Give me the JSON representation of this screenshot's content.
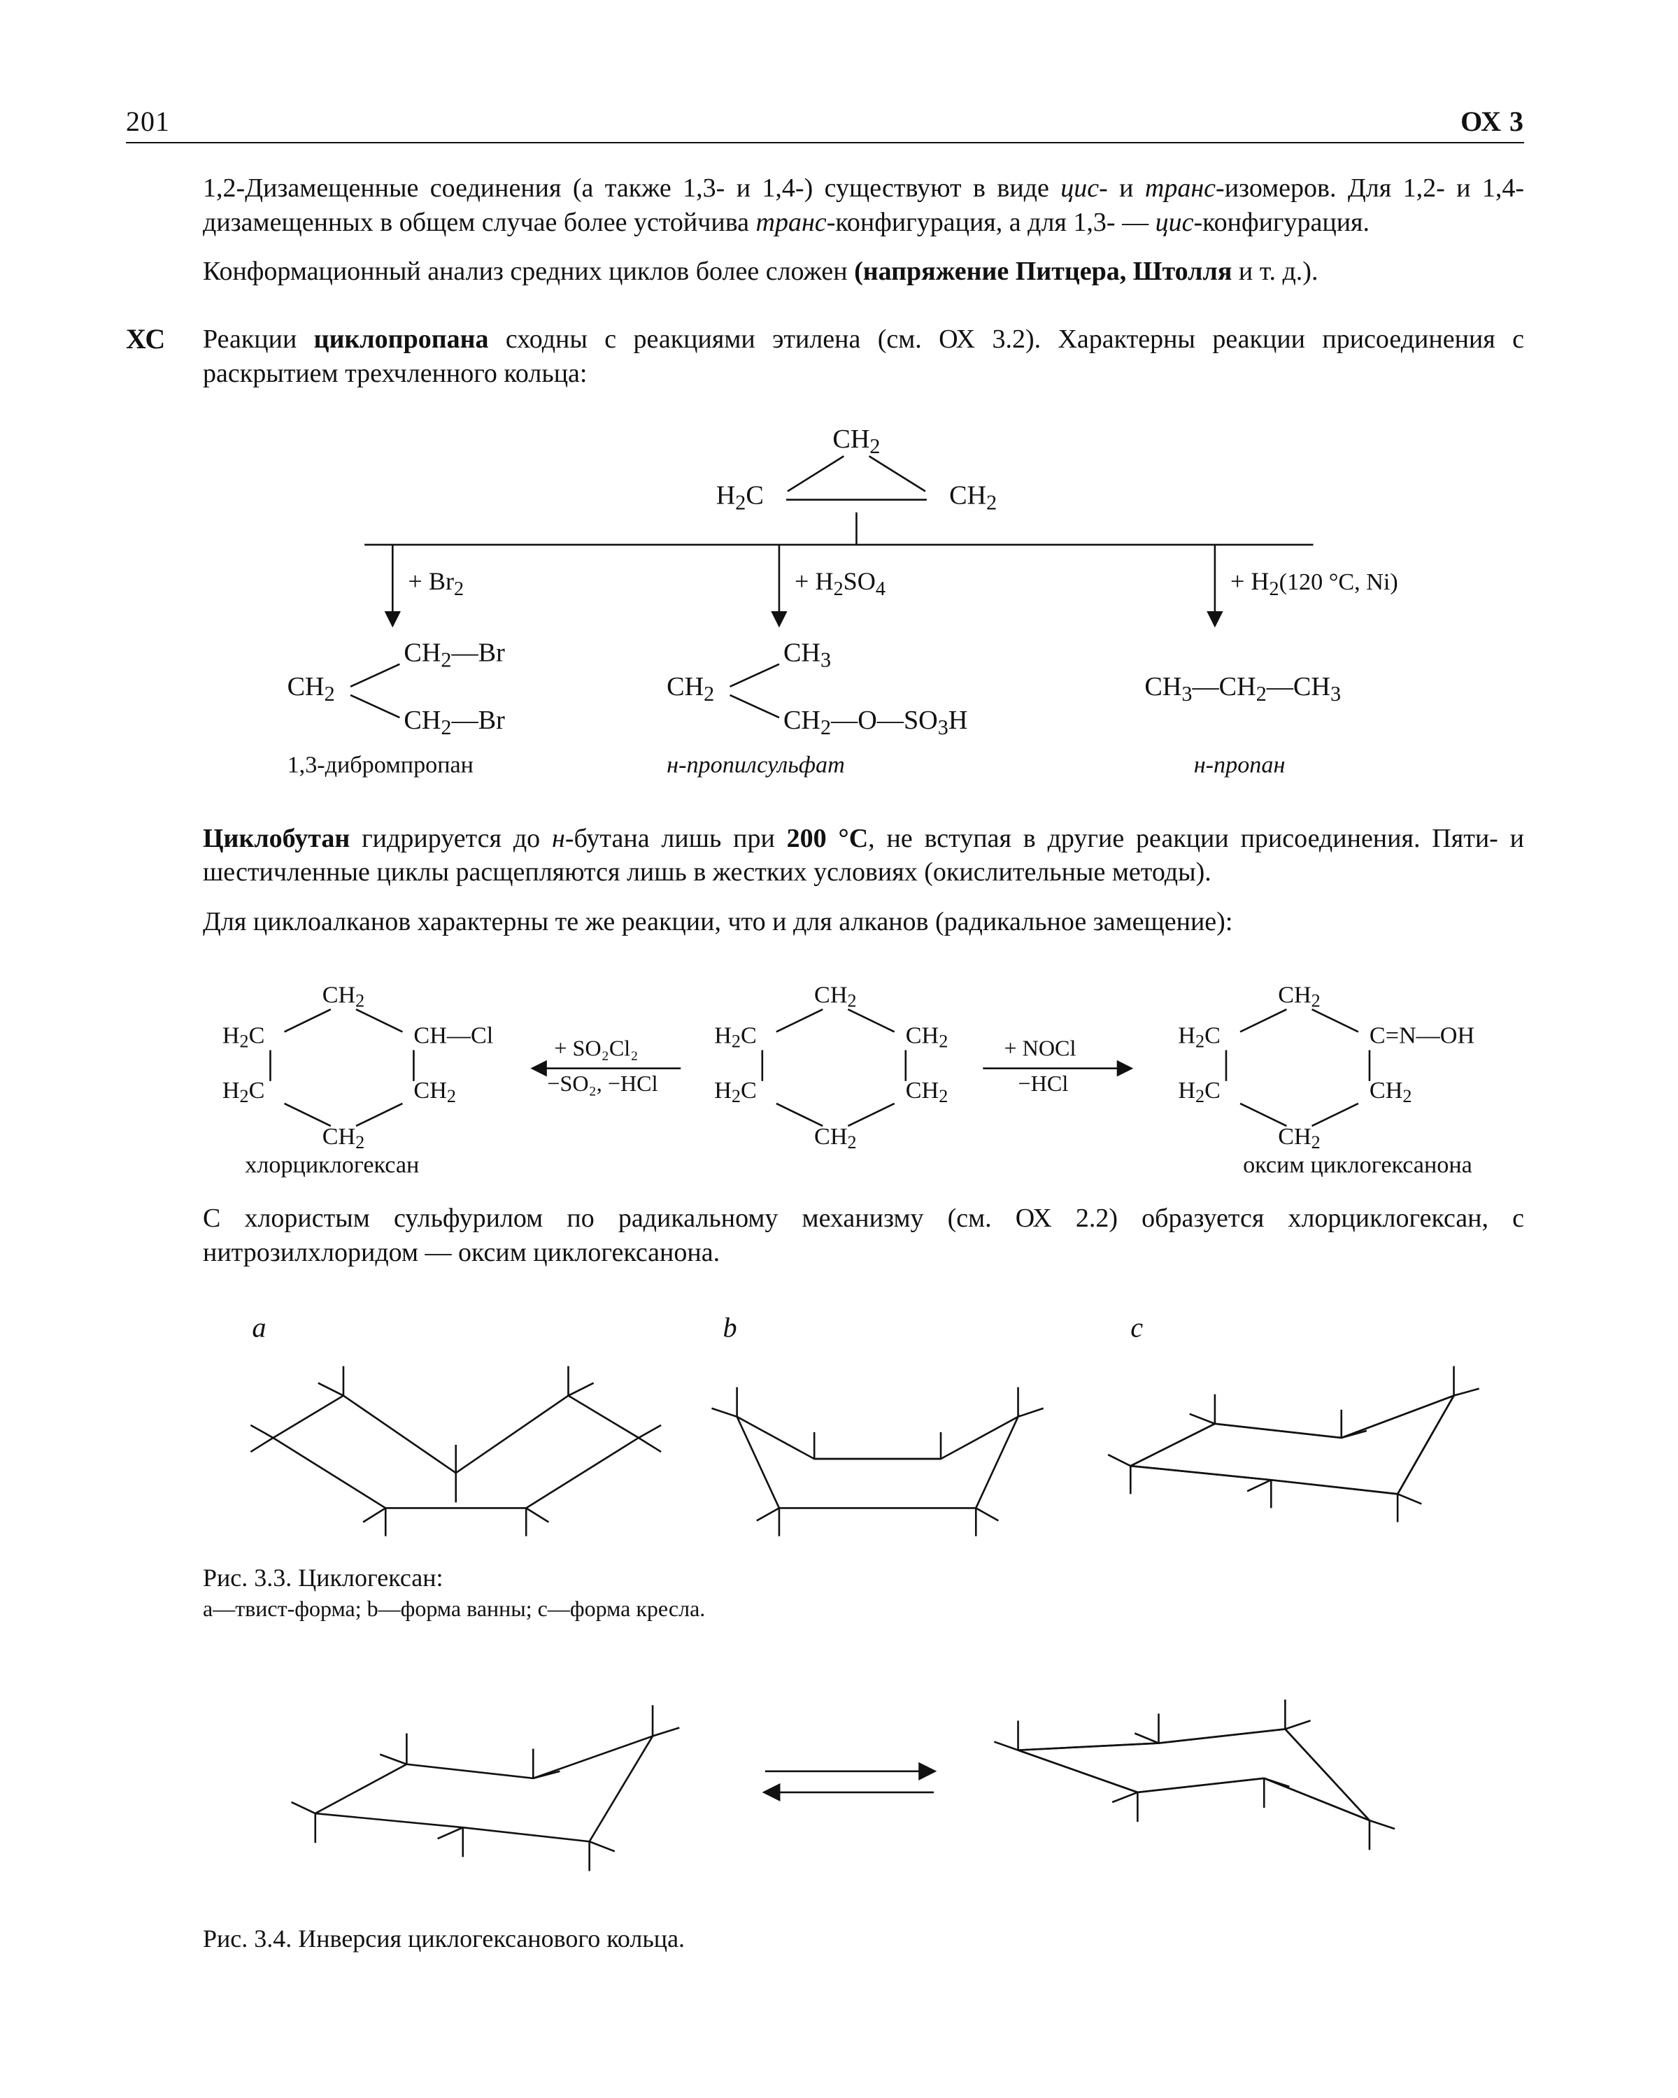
{
  "page_number": "201",
  "section_code": "ОХ 3",
  "margin_label": "ХС",
  "para1_html": "1,2-Дизамещенные соединения (а также 1,3- и 1,4-) существуют в виде <span class=\"i\">цис</span>- и <span class=\"i\">транс</span>-изомеров. Для 1,2- и 1,4-дизамещенных в общем случае более устойчива <span class=\"i\">транс</span>-конфигурация, а для 1,3- — <span class=\"i\">цис</span>-конфигурация.",
  "para2_html": "Конформационный анализ средних циклов более сложен <span class=\"b\">(напряжение Питцера, Штолля</span> и т. д.).",
  "para3_html": "Реакции <span class=\"b\">циклопропана</span> сходны с реакциями этилена (см. ОХ 3.2). Характерны реакции присоединения с раскрытием трехчленного кольца:",
  "para4_html": "<span class=\"b\">Циклобутан</span> гидрируется до <span class=\"i\">н</span>-бутана лишь при <span class=\"b\">200 °C</span>, не вступая в другие реакции присоединения. Пяти- и шестичленные циклы расщепляются лишь в жестких условиях (окислительные методы).",
  "para5_html": "Для циклоалканов характерны те же реакции, что и для алканов (радикальное замещение):",
  "para6_html": "С хлористым сульфурилом по радикальному механизму (см. ОХ 2.2) образуется хлорциклогексан, с нитрозилхлоридом — оксим циклогексанона.",
  "scheme1": {
    "top_labels": {
      "l1": "CH",
      "sub1": "2",
      "l2": "H",
      "sub2": "2",
      "l3": "C",
      "l4": "CH",
      "sub4": "2"
    },
    "reagents": {
      "br": "+ Br",
      "br_sub": "2",
      "h2so4": "+ H",
      "h2so4_s1": "2",
      "h2so4_t2": "SO",
      "h2so4_s2": "4",
      "h2": "+ H",
      "h2_sub": "2",
      "h2_cond": "(120 °C, Ni)"
    },
    "products": {
      "p1": {
        "lbl": "1,3-дибромпропан"
      },
      "p2": {
        "lbl": "н-пропилсульфат"
      },
      "p3": {
        "lbl": "н-пропан"
      }
    },
    "formulas": {
      "p1": [
        "CH₂—Br",
        "CH₂",
        "CH₂—Br"
      ],
      "p2": [
        "CH₃",
        "CH₂",
        "CH₂—O—SO₃H"
      ],
      "p3": "CH₃—CH₂—CH₃"
    }
  },
  "scheme2": {
    "left_label": "хлорциклогексан",
    "right_label": "оксим циклогексанона",
    "reagent_left_top": "+ SO₂Cl₂",
    "reagent_left_bot": "−SO₂, −HCl",
    "reagent_right_top": "+ NOCl",
    "reagent_right_bot": "−HCl"
  },
  "fig33": {
    "labels": {
      "a": "a",
      "b": "b",
      "c": "c"
    },
    "caption_title": "Рис. 3.3. Циклогексан:",
    "caption_legend_html": "<span class=\"i\">a</span>—<span class=\"i\">твист</span>-форма; <span class=\"i\">b</span>—форма ванны; <span class=\"i\">c</span>—форма кресла."
  },
  "fig34": {
    "caption": "Рис. 3.4. Инверсия циклогексанового кольца."
  },
  "style": {
    "stroke": "#111",
    "stroke_w": 2.6,
    "text_color": "#111",
    "font_body": 38,
    "font_label": 34
  }
}
